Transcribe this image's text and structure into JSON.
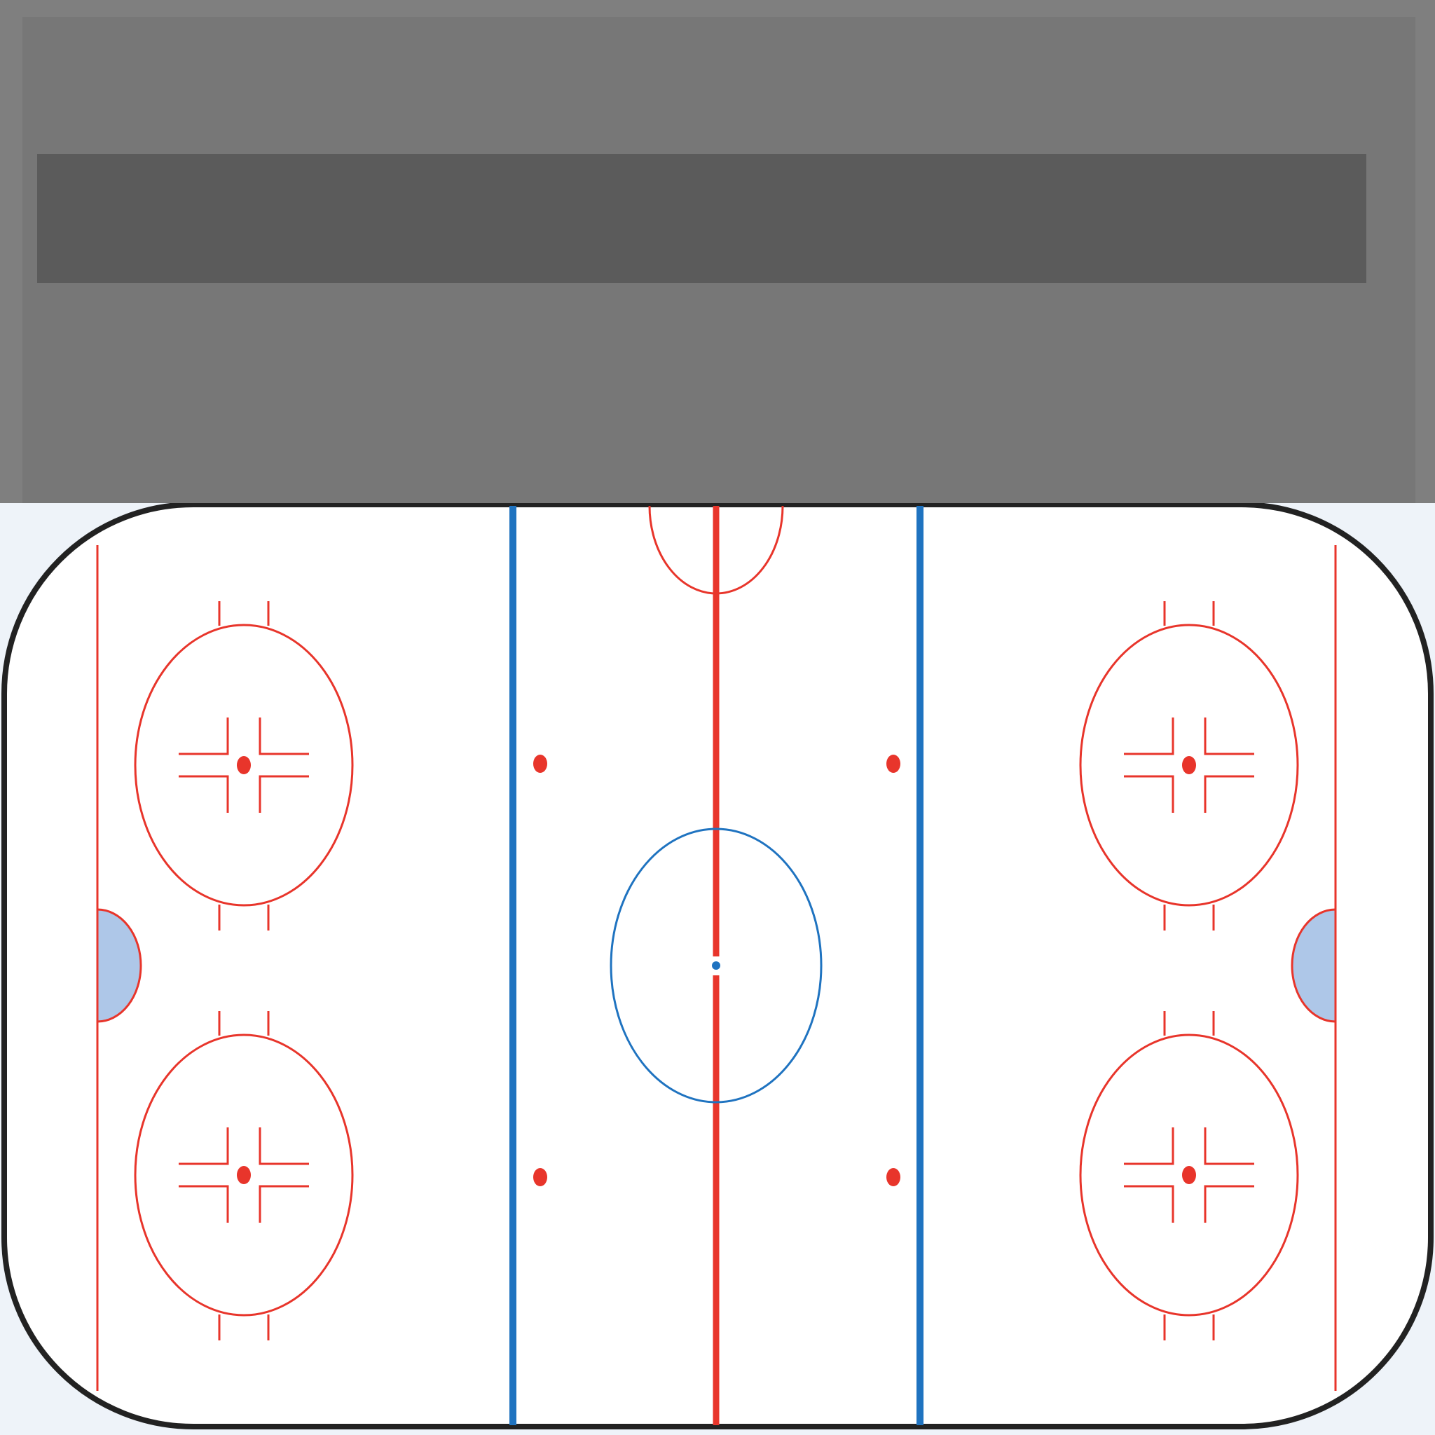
{
  "overlay": {
    "panel_label": "",
    "bar_label": ""
  },
  "rink": {
    "board_color": "#222222",
    "ice_color": "#ffffff",
    "red_line_color": "#e8352b",
    "blue_line_color": "#1f73c0",
    "crease_color": "#aec7e8",
    "faceoff_circles": [
      "defensive-top-left",
      "defensive-bottom-left",
      "defensive-top-right",
      "defensive-bottom-right"
    ],
    "neutral_dots": [
      "neutral-top-left",
      "neutral-bottom-left",
      "neutral-top-right",
      "neutral-bottom-right"
    ]
  }
}
